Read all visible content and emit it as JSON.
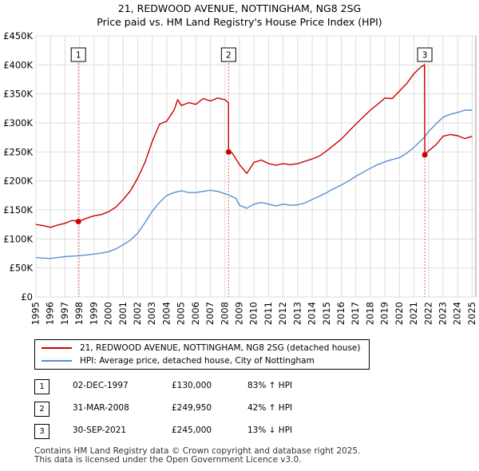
{
  "title": "21, REDWOOD AVENUE, NOTTINGHAM, NG8 2SG",
  "subtitle": "Price paid vs. HM Land Registry's House Price Index (HPI)",
  "colors": {
    "property": "#cc0000",
    "hpi": "#5b8fd0",
    "grid": "#dddddd",
    "marker_line": "#e06666"
  },
  "chart_data": {
    "type": "line",
    "ylim": [
      0,
      450000
    ],
    "xlim": [
      1995,
      2025.25
    ],
    "y_ticks": [
      {
        "value": 0,
        "label": "£0"
      },
      {
        "value": 50000,
        "label": "£50K"
      },
      {
        "value": 100000,
        "label": "£100K"
      },
      {
        "value": 150000,
        "label": "£150K"
      },
      {
        "value": 200000,
        "label": "£200K"
      },
      {
        "value": 250000,
        "label": "£250K"
      },
      {
        "value": 300000,
        "label": "£300K"
      },
      {
        "value": 350000,
        "label": "£350K"
      },
      {
        "value": 400000,
        "label": "£400K"
      },
      {
        "value": 450000,
        "label": "£450K"
      }
    ],
    "x_ticks": [
      "1995",
      "1996",
      "1997",
      "1998",
      "1999",
      "2000",
      "2001",
      "2002",
      "2003",
      "2004",
      "2005",
      "2006",
      "2007",
      "2008",
      "2009",
      "2010",
      "2011",
      "2012",
      "2013",
      "2014",
      "2015",
      "2016",
      "2017",
      "2018",
      "2019",
      "2020",
      "2021",
      "2022",
      "2023",
      "2024",
      "2025"
    ],
    "series": [
      {
        "name": "21, REDWOOD AVENUE, NOTTINGHAM, NG8 2SG (detached house)",
        "color": "#cc0000",
        "points": [
          [
            1995.0,
            125000
          ],
          [
            1995.5,
            123000
          ],
          [
            1996.0,
            120000
          ],
          [
            1996.5,
            124000
          ],
          [
            1997.0,
            127000
          ],
          [
            1997.5,
            132000
          ],
          [
            1997.92,
            130000
          ],
          [
            1998.5,
            136000
          ],
          [
            1999.0,
            140000
          ],
          [
            1999.5,
            142000
          ],
          [
            2000.0,
            147000
          ],
          [
            2000.5,
            155000
          ],
          [
            2001.0,
            168000
          ],
          [
            2001.5,
            183000
          ],
          [
            2002.0,
            205000
          ],
          [
            2002.5,
            232000
          ],
          [
            2003.0,
            268000
          ],
          [
            2003.5,
            298000
          ],
          [
            2004.0,
            303000
          ],
          [
            2004.5,
            322000
          ],
          [
            2004.75,
            340000
          ],
          [
            2005.0,
            330000
          ],
          [
            2005.5,
            335000
          ],
          [
            2006.0,
            332000
          ],
          [
            2006.5,
            342000
          ],
          [
            2007.0,
            338000
          ],
          [
            2007.5,
            343000
          ],
          [
            2008.0,
            340000
          ],
          [
            2008.24,
            335000
          ],
          [
            2008.25,
            249950
          ],
          [
            2008.5,
            248000
          ],
          [
            2009.0,
            228000
          ],
          [
            2009.5,
            213000
          ],
          [
            2010.0,
            232000
          ],
          [
            2010.5,
            236000
          ],
          [
            2011.0,
            230000
          ],
          [
            2011.5,
            227000
          ],
          [
            2012.0,
            230000
          ],
          [
            2012.5,
            228000
          ],
          [
            2013.0,
            230000
          ],
          [
            2013.5,
            234000
          ],
          [
            2014.0,
            238000
          ],
          [
            2014.5,
            243000
          ],
          [
            2015.0,
            252000
          ],
          [
            2015.5,
            262000
          ],
          [
            2016.0,
            272000
          ],
          [
            2016.5,
            285000
          ],
          [
            2017.0,
            298000
          ],
          [
            2017.5,
            310000
          ],
          [
            2018.0,
            322000
          ],
          [
            2018.5,
            332000
          ],
          [
            2019.0,
            343000
          ],
          [
            2019.5,
            342000
          ],
          [
            2020.0,
            355000
          ],
          [
            2020.5,
            368000
          ],
          [
            2021.0,
            385000
          ],
          [
            2021.5,
            397000
          ],
          [
            2021.72,
            400000
          ],
          [
            2021.74,
            245000
          ],
          [
            2022.0,
            252000
          ],
          [
            2022.5,
            262000
          ],
          [
            2023.0,
            277000
          ],
          [
            2023.5,
            280000
          ],
          [
            2024.0,
            278000
          ],
          [
            2024.5,
            273000
          ],
          [
            2025.0,
            277000
          ]
        ]
      },
      {
        "name": "HPI: Average price, detached house, City of Nottingham",
        "color": "#5b8fd0",
        "points": [
          [
            1995.0,
            68000
          ],
          [
            1995.5,
            67000
          ],
          [
            1996.0,
            66500
          ],
          [
            1996.5,
            68000
          ],
          [
            1997.0,
            69500
          ],
          [
            1997.5,
            70500
          ],
          [
            1997.92,
            71000
          ],
          [
            1998.5,
            72500
          ],
          [
            1999.0,
            74000
          ],
          [
            1999.5,
            75500
          ],
          [
            2000.0,
            78000
          ],
          [
            2000.5,
            83000
          ],
          [
            2001.0,
            90000
          ],
          [
            2001.5,
            98000
          ],
          [
            2002.0,
            110000
          ],
          [
            2002.5,
            128000
          ],
          [
            2003.0,
            148000
          ],
          [
            2003.5,
            163000
          ],
          [
            2004.0,
            175000
          ],
          [
            2004.5,
            180000
          ],
          [
            2005.0,
            183000
          ],
          [
            2005.5,
            180000
          ],
          [
            2006.0,
            180000
          ],
          [
            2006.5,
            182000
          ],
          [
            2007.0,
            184000
          ],
          [
            2007.5,
            182000
          ],
          [
            2008.0,
            178000
          ],
          [
            2008.25,
            176000
          ],
          [
            2008.75,
            170000
          ],
          [
            2009.0,
            158000
          ],
          [
            2009.5,
            153000
          ],
          [
            2010.0,
            160000
          ],
          [
            2010.5,
            163000
          ],
          [
            2011.0,
            160000
          ],
          [
            2011.5,
            157000
          ],
          [
            2012.0,
            160000
          ],
          [
            2012.5,
            158000
          ],
          [
            2013.0,
            159000
          ],
          [
            2013.5,
            162000
          ],
          [
            2014.0,
            168000
          ],
          [
            2014.5,
            174000
          ],
          [
            2015.0,
            180000
          ],
          [
            2015.5,
            187000
          ],
          [
            2016.0,
            193000
          ],
          [
            2016.5,
            200000
          ],
          [
            2017.0,
            208000
          ],
          [
            2017.5,
            215000
          ],
          [
            2018.0,
            222000
          ],
          [
            2018.5,
            228000
          ],
          [
            2019.0,
            233000
          ],
          [
            2019.5,
            237000
          ],
          [
            2020.0,
            240000
          ],
          [
            2020.5,
            248000
          ],
          [
            2021.0,
            258000
          ],
          [
            2021.5,
            270000
          ],
          [
            2021.74,
            276000
          ],
          [
            2022.0,
            285000
          ],
          [
            2022.5,
            298000
          ],
          [
            2023.0,
            310000
          ],
          [
            2023.5,
            315000
          ],
          [
            2024.0,
            318000
          ],
          [
            2024.5,
            322000
          ],
          [
            2025.0,
            322000
          ]
        ]
      }
    ],
    "markers": [
      {
        "label": "1",
        "x": 1997.92,
        "y": 130000
      },
      {
        "label": "2",
        "x": 2008.25,
        "y": 249950
      },
      {
        "label": "3",
        "x": 2021.74,
        "y": 245000
      }
    ]
  },
  "legend": {
    "property": "21, REDWOOD AVENUE, NOTTINGHAM, NG8 2SG (detached house)",
    "hpi": "HPI: Average price, detached house, City of Nottingham"
  },
  "sales": [
    {
      "num": "1",
      "date": "02-DEC-1997",
      "price": "£130,000",
      "hpi": "83% ↑ HPI"
    },
    {
      "num": "2",
      "date": "31-MAR-2008",
      "price": "£249,950",
      "hpi": "42% ↑ HPI"
    },
    {
      "num": "3",
      "date": "30-SEP-2021",
      "price": "£245,000",
      "hpi": "13% ↓ HPI"
    }
  ],
  "footer": {
    "line1": "Contains HM Land Registry data © Crown copyright and database right 2025.",
    "line2": "This data is licensed under the Open Government Licence v3.0."
  }
}
